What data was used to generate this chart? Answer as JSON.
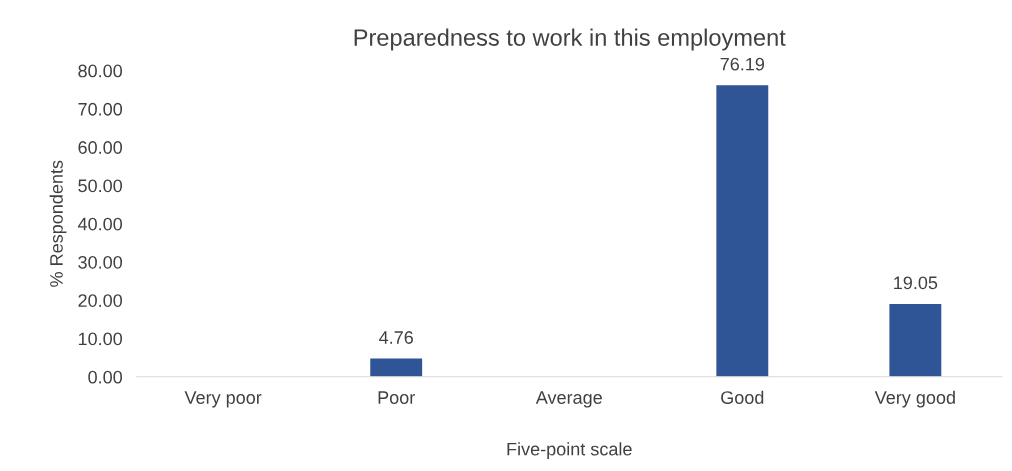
{
  "chart_data": {
    "type": "bar",
    "title": "Preparedness to work in this employment",
    "xlabel": "Five-point scale",
    "ylabel": "% Respondents",
    "categories": [
      "Very poor",
      "Poor",
      "Average",
      "Good",
      "Very good"
    ],
    "values": [
      0,
      4.76,
      0,
      76.19,
      19.05
    ],
    "value_labels": [
      null,
      "4.76",
      null,
      "76.19",
      "19.05"
    ],
    "color": "#2f5597",
    "ylim": [
      0,
      80
    ],
    "yticks": [
      {
        "value": 0,
        "label": "0.00"
      },
      {
        "value": 10,
        "label": "10.00"
      },
      {
        "value": 20,
        "label": "20.00"
      },
      {
        "value": 30,
        "label": "30.00"
      },
      {
        "value": 40,
        "label": "40.00"
      },
      {
        "value": 50,
        "label": "50.00"
      },
      {
        "value": 60,
        "label": "60.00"
      },
      {
        "value": 70,
        "label": "70.00"
      },
      {
        "value": 80,
        "label": "80.00"
      }
    ],
    "grid": false,
    "legend": false
  }
}
